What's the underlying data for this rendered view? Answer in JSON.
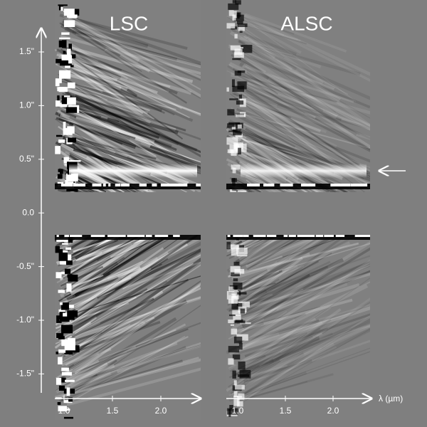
{
  "panels": [
    {
      "title": "LSC",
      "xticks": [
        "1.0",
        "1.5",
        "2.0"
      ]
    },
    {
      "title": "ALSC",
      "xticks": [
        "1.0",
        "1.5",
        "2.0"
      ]
    }
  ],
  "y_axis": {
    "ticks": [
      "1.5\"",
      "1.0\"",
      "0.5\"",
      "0.0",
      "-0.5\"",
      "-1.0\"",
      "-1.5\""
    ]
  },
  "x_axis_label": "λ (µm)"
}
